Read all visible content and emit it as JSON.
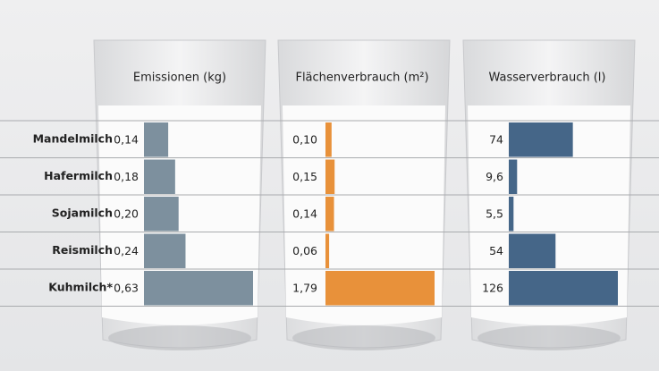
{
  "chart_data": {
    "type": "bar",
    "orientation": "horizontal",
    "categories": [
      "Mandelmilch",
      "Hafermilch",
      "Sojamilch",
      "Reismilch",
      "Kuhmilch*"
    ],
    "series": [
      {
        "name": "Emissionen (kg)",
        "color": "#7d909e",
        "values": [
          0.14,
          0.18,
          0.2,
          0.24,
          0.63
        ],
        "value_labels": [
          "0,14",
          "0,18",
          "0,20",
          "0,24",
          "0,63"
        ]
      },
      {
        "name": "Flächenverbrauch (m²)",
        "color": "#e8913a",
        "values": [
          0.1,
          0.15,
          0.14,
          0.06,
          1.79
        ],
        "value_labels": [
          "0,10",
          "0,15",
          "0,14",
          "0,06",
          "1,79"
        ]
      },
      {
        "name": "Wasserverbrauch (l)",
        "color": "#456688",
        "values": [
          74,
          9.6,
          5.5,
          54,
          126
        ],
        "value_labels": [
          "74",
          "9,6",
          "5,5",
          "54",
          "126"
        ]
      }
    ]
  }
}
